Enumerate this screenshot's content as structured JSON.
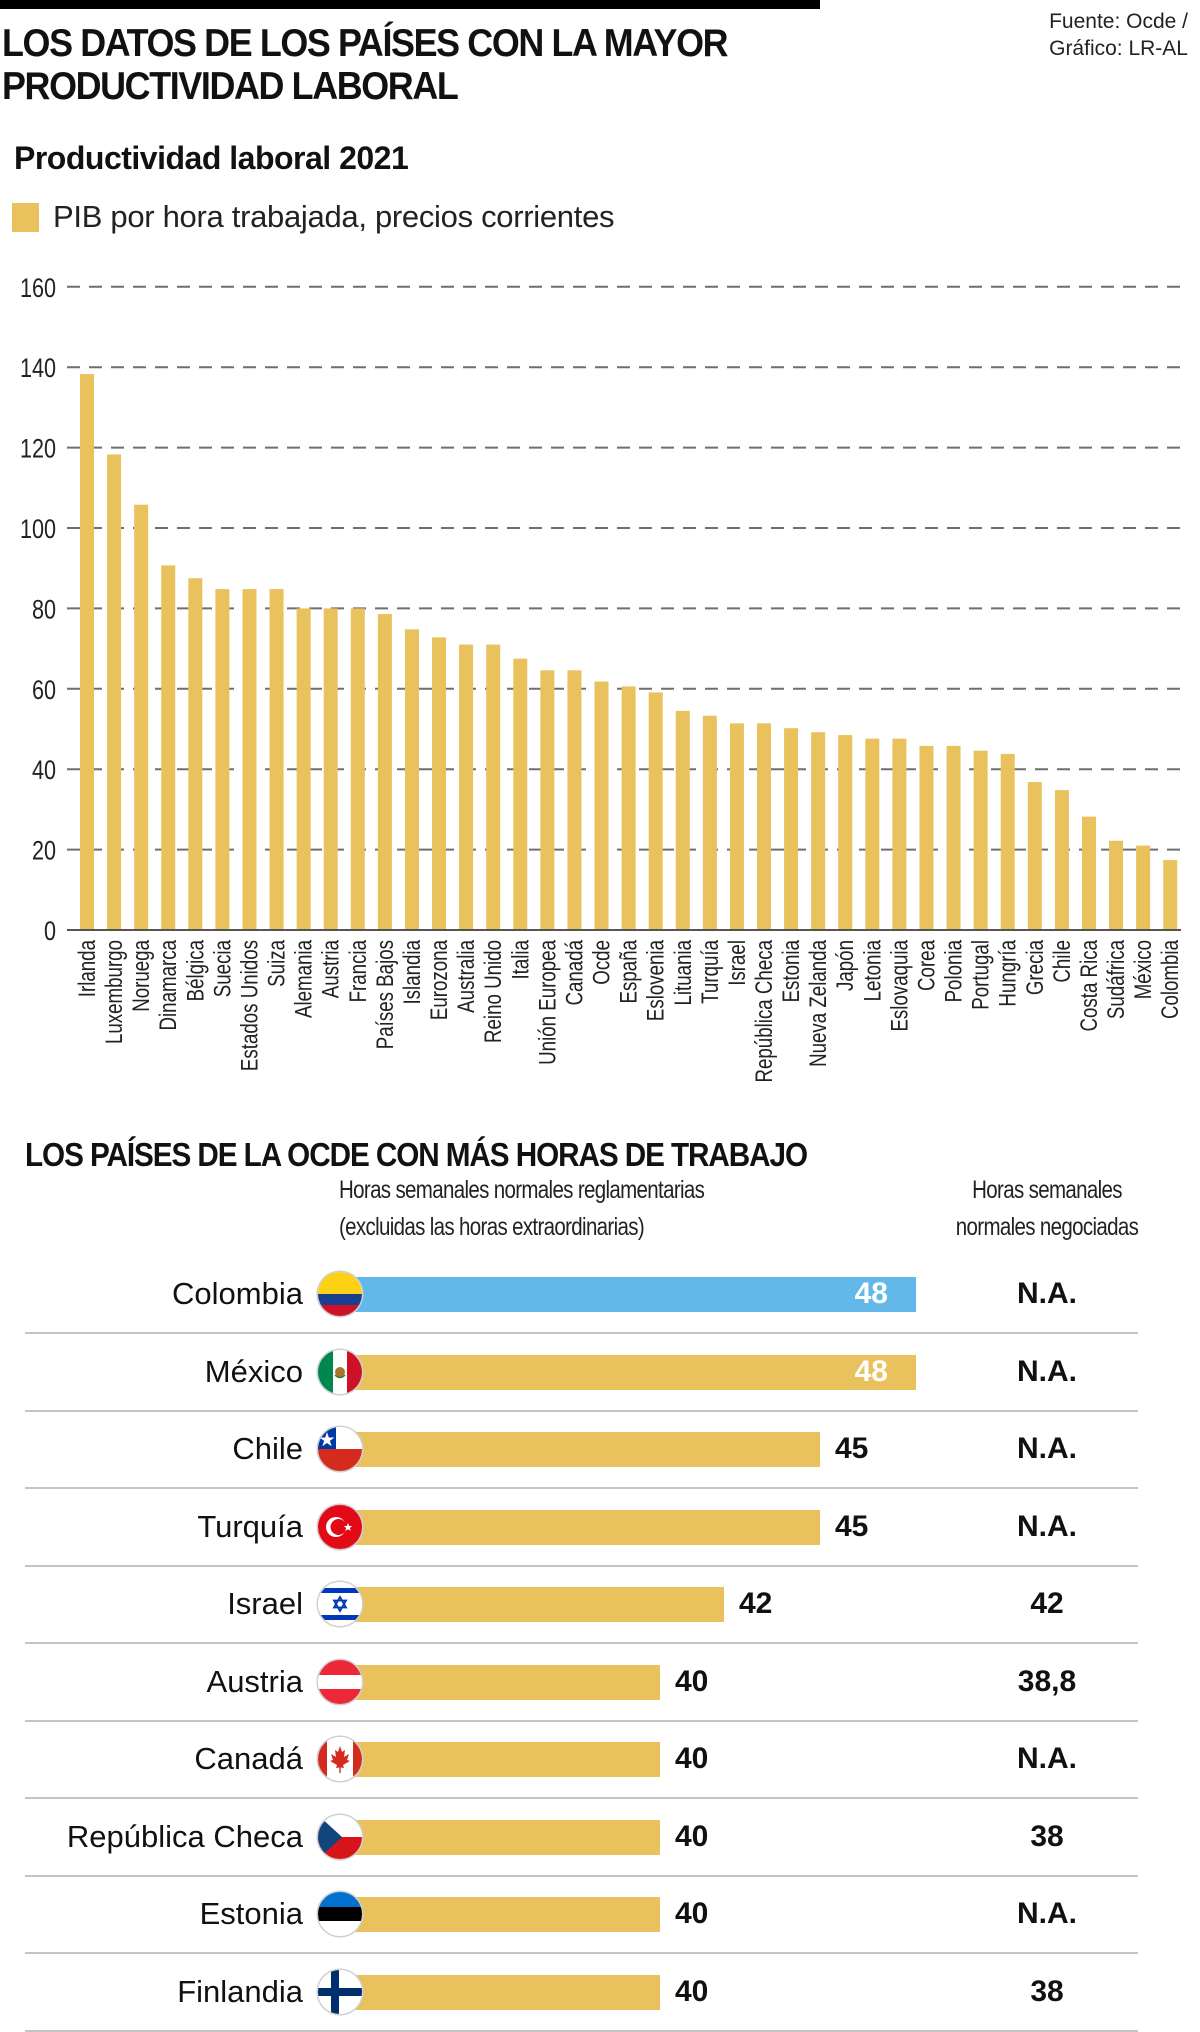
{
  "header": {
    "title_lines": [
      "LOS DATOS DE LOS PAÍSES CON LA MAYOR",
      "PRODUCTIVIDAD LABORAL"
    ],
    "source_lines": [
      "Fuente: Ocde /",
      "Gráfico: LR-AL"
    ]
  },
  "colors": {
    "bar_gold": "#e9c25e",
    "highlight_blue": "#62b8e8",
    "grid": "#6f6f6f",
    "axis": "#555555",
    "text": "#111111",
    "divider": "#c4c4c4"
  },
  "chart_data": {
    "type": "bar",
    "title": "Productividad laboral 2021",
    "legend": [
      {
        "label": "PIB por hora trabajada, precios corrientes",
        "color": "#e9c25e"
      }
    ],
    "legend_position": "top-left",
    "xlabel": "",
    "ylabel": "",
    "ylim": [
      0,
      160
    ],
    "yticks": [
      0,
      20,
      40,
      60,
      80,
      100,
      120,
      140,
      160
    ],
    "grid": true,
    "categories": [
      "Irlanda",
      "Luxemburgo",
      "Noruega",
      "Dinamarca",
      "Bélgica",
      "Suecia",
      "Estados Unidos",
      "Suiza",
      "Alemania",
      "Austria",
      "Francia",
      "Países Bajos",
      "Islandia",
      "Eurozona",
      "Australia",
      "Reino Unido",
      "Italia",
      "Unión Europea",
      "Canadá",
      "Ocde",
      "España",
      "Eslovenia",
      "Lituania",
      "Turquía",
      "Israel",
      "República Checa",
      "Estonia",
      "Nueva Zelanda",
      "Japón",
      "Letonia",
      "Eslovaquia",
      "Corea",
      "Polonia",
      "Portugal",
      "Hungría",
      "Grecia",
      "Chile",
      "Costa Rica",
      "Sudáfrica",
      "México",
      "Colombia"
    ],
    "values": [
      138.3,
      118.3,
      105.8,
      90.7,
      87.5,
      84.8,
      84.8,
      84.8,
      80.0,
      80.0,
      80.0,
      78.6,
      74.8,
      72.8,
      71.0,
      71.0,
      67.5,
      64.6,
      64.6,
      61.8,
      60.6,
      59.1,
      54.5,
      53.3,
      51.4,
      51.4,
      50.2,
      49.2,
      48.5,
      47.6,
      47.6,
      45.8,
      45.8,
      44.6,
      43.8,
      36.8,
      34.8,
      28.2,
      22.2,
      21.0,
      17.4
    ]
  },
  "hours_table": {
    "title": "LOS PAÍSES DE LA OCDE CON MÁS HORAS DE TRABAJO",
    "header_left": [
      "Horas semanales normales reglamentarias",
      "(excluidas las horas extraordinarias)"
    ],
    "header_right": [
      "Horas semanales",
      "normales negociadas"
    ],
    "scale_min_hours": 30.47,
    "rows": [
      {
        "country": "Colombia",
        "flag": "colombia-flag-icon",
        "hours": 48,
        "hours_label": "48",
        "negotiated": "N.A.",
        "highlight": true,
        "label_inside": true
      },
      {
        "country": "México",
        "flag": "mexico-flag-icon",
        "hours": 48,
        "hours_label": "48",
        "negotiated": "N.A.",
        "highlight": false,
        "label_inside": true
      },
      {
        "country": "Chile",
        "flag": "chile-flag-icon",
        "hours": 45,
        "hours_label": "45",
        "negotiated": "N.A.",
        "highlight": false,
        "label_inside": false
      },
      {
        "country": "Turquía",
        "flag": "turkey-flag-icon",
        "hours": 45,
        "hours_label": "45",
        "negotiated": "N.A.",
        "highlight": false,
        "label_inside": false
      },
      {
        "country": "Israel",
        "flag": "israel-flag-icon",
        "hours": 42,
        "hours_label": "42",
        "negotiated": "42",
        "highlight": false,
        "label_inside": false
      },
      {
        "country": "Austria",
        "flag": "austria-flag-icon",
        "hours": 40,
        "hours_label": "40",
        "negotiated": "38,8",
        "highlight": false,
        "label_inside": false
      },
      {
        "country": "Canadá",
        "flag": "canada-flag-icon",
        "hours": 40,
        "hours_label": "40",
        "negotiated": "N.A.",
        "highlight": false,
        "label_inside": false
      },
      {
        "country": "República Checa",
        "flag": "czech-flag-icon",
        "hours": 40,
        "hours_label": "40",
        "negotiated": "38",
        "highlight": false,
        "label_inside": false
      },
      {
        "country": "Estonia",
        "flag": "estonia-flag-icon",
        "hours": 40,
        "hours_label": "40",
        "negotiated": "N.A.",
        "highlight": false,
        "label_inside": false
      },
      {
        "country": "Finlandia",
        "flag": "finland-flag-icon",
        "hours": 40,
        "hours_label": "40",
        "negotiated": "38",
        "highlight": false,
        "label_inside": false
      }
    ]
  }
}
